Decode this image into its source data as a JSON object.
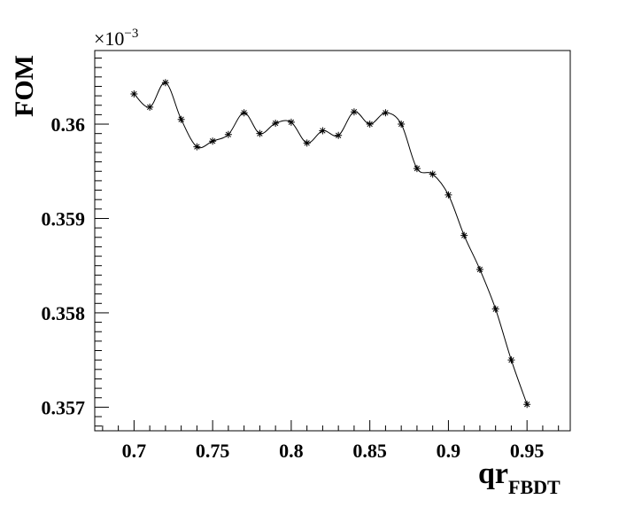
{
  "chart_data": {
    "type": "line",
    "title": "",
    "xlabel": "qr",
    "xlabel_subscript": "FBDT",
    "ylabel": "FOM",
    "y_exponent_base": "×10",
    "y_exponent_power": "−3",
    "xlim": [
      0.675,
      0.9775
    ],
    "ylim": [
      0.35675,
      0.36078
    ],
    "xticks": [
      0.7,
      0.75,
      0.8,
      0.85,
      0.9,
      0.95
    ],
    "xtick_labels": [
      "0.7",
      "0.75",
      "0.8",
      "0.85",
      "0.9",
      "0.95"
    ],
    "yticks": [
      0.357,
      0.358,
      0.359,
      0.36
    ],
    "ytick_labels": [
      "0.357",
      "0.358",
      "0.359",
      "0.36"
    ],
    "grid": false,
    "marker": "asterisk",
    "line": "smooth",
    "series": [
      {
        "x": [
          0.7,
          0.71,
          0.72,
          0.73,
          0.74,
          0.75,
          0.76,
          0.77,
          0.78,
          0.79,
          0.8,
          0.81,
          0.82,
          0.83,
          0.84,
          0.85,
          0.86,
          0.87,
          0.88,
          0.89,
          0.9,
          0.91,
          0.92,
          0.93,
          0.94,
          0.95
        ],
        "y": [
          0.36032,
          0.36018,
          0.36044,
          0.36005,
          0.35976,
          0.35982,
          0.35989,
          0.36012,
          0.3599,
          0.36001,
          0.36002,
          0.3598,
          0.35993,
          0.35988,
          0.36013,
          0.36,
          0.36012,
          0.36,
          0.35953,
          0.35947,
          0.35925,
          0.35882,
          0.35846,
          0.35804,
          0.3575,
          0.35703
        ]
      }
    ]
  }
}
